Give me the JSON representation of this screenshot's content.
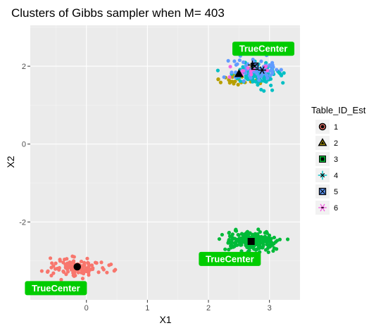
{
  "chart_data": {
    "type": "scatter",
    "title": "Clusters of Gibbs sampler when M= 403",
    "xlabel": "X1",
    "ylabel": "X2",
    "xlim": [
      -0.92,
      3.5
    ],
    "ylim": [
      -4.0,
      3.05
    ],
    "x_ticks": [
      0,
      1,
      2,
      3
    ],
    "y_ticks": [
      -2,
      0,
      2
    ],
    "grid": true,
    "legend": {
      "title": "Table_ID_Est",
      "position": "right",
      "entries": [
        {
          "label": "1",
          "color": "#F8766D",
          "shape": "circle"
        },
        {
          "label": "2",
          "color": "#B79F00",
          "shape": "triangle"
        },
        {
          "label": "3",
          "color": "#00BA38",
          "shape": "square"
        },
        {
          "label": "4",
          "color": "#00BFC4",
          "shape": "plus-cross"
        },
        {
          "label": "5",
          "color": "#619CFF",
          "shape": "square-x"
        },
        {
          "label": "6",
          "color": "#F564E3",
          "shape": "asterisk"
        }
      ]
    },
    "clusters": [
      {
        "table": "1",
        "color": "#F8766D",
        "center": [
          -0.15,
          -3.15
        ],
        "sd": [
          0.22,
          0.12
        ],
        "n": 120
      },
      {
        "table": "3",
        "color": "#00BA38",
        "center": [
          2.7,
          -2.5
        ],
        "sd": [
          0.22,
          0.13
        ],
        "n": 220
      },
      {
        "table": "2",
        "color": "#B79F00",
        "center": [
          2.55,
          1.65
        ],
        "sd": [
          0.22,
          0.12
        ],
        "n": 32
      },
      {
        "table": "4",
        "color": "#00BFC4",
        "center": [
          2.78,
          1.8
        ],
        "sd": [
          0.18,
          0.13
        ],
        "n": 130
      },
      {
        "table": "5",
        "color": "#619CFF",
        "center": [
          2.75,
          1.95
        ],
        "sd": [
          0.2,
          0.15
        ],
        "n": 70
      },
      {
        "table": "6",
        "color": "#F564E3",
        "center": [
          2.65,
          1.9
        ],
        "sd": [
          0.15,
          0.09
        ],
        "n": 14
      }
    ],
    "estimated_centers": [
      {
        "table": "1",
        "x": -0.15,
        "y": -3.15,
        "shape": "circle"
      },
      {
        "table": "2",
        "x": 2.5,
        "y": 1.8,
        "shape": "triangle"
      },
      {
        "table": "3",
        "x": 2.7,
        "y": -2.5,
        "shape": "square"
      },
      {
        "table": "4",
        "x": 2.72,
        "y": 2.03,
        "shape": "plus-cross"
      },
      {
        "table": "5",
        "x": 2.76,
        "y": 2.0,
        "shape": "square-x"
      },
      {
        "table": "6",
        "x": 2.88,
        "y": 1.9,
        "shape": "asterisk"
      }
    ],
    "annotations": [
      {
        "text": "TrueCenter",
        "x": 2.9,
        "y": 2.45
      },
      {
        "text": "TrueCenter",
        "x": 2.35,
        "y": -2.95
      },
      {
        "text": "TrueCenter",
        "x": -0.5,
        "y": -3.7
      }
    ],
    "colors": {
      "panel": "#EBEBEB",
      "grid_major": "#FFFFFF",
      "label_bg": "#00CC00",
      "label_text": "#FFFFFF"
    }
  }
}
